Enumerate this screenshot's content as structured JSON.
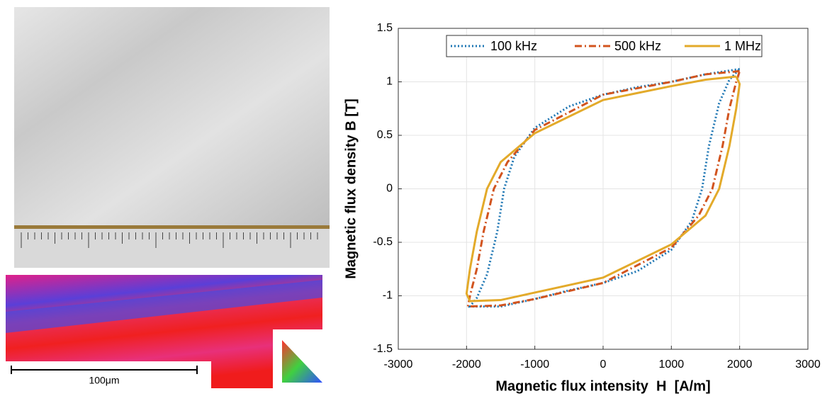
{
  "figure_texts": {
    "scale_bar": "100μm"
  },
  "chart_data": {
    "type": "line",
    "x_label": "Magnetic flux intensity  H  [A/m]",
    "y_label": "Magnetic flux density B [T]",
    "xlim": [
      -3000,
      3000
    ],
    "xticks": [
      -3000,
      -2000,
      -1000,
      0,
      1000,
      2000,
      3000
    ],
    "ylim": [
      -1.5,
      1.5
    ],
    "yticks": [
      -1.5,
      -1,
      -0.5,
      0,
      0.5,
      1,
      1.5
    ],
    "grid": true,
    "legend": "top",
    "series": [
      {
        "name": "100 kHz",
        "color": "#1f77b4",
        "style": "dotted",
        "x": [
          2000,
          1500,
          1000,
          500,
          0,
          -500,
          -1000,
          -1300,
          -1450,
          -1550,
          -1700,
          -1850,
          -1950,
          -1500,
          -1000,
          -500,
          0,
          500,
          1000,
          1300,
          1450,
          1550,
          1700,
          1850,
          2000
        ],
        "values": [
          1.12,
          1.07,
          1.0,
          0.95,
          0.88,
          0.77,
          0.57,
          0.3,
          0,
          -0.4,
          -0.8,
          -1.02,
          -1.1,
          -1.1,
          -1.03,
          -0.95,
          -0.88,
          -0.77,
          -0.57,
          -0.3,
          0,
          0.4,
          0.8,
          1.02,
          1.12
        ]
      },
      {
        "name": "500 kHz",
        "color": "#d2541f",
        "style": "dashdot",
        "x": [
          2000,
          1500,
          1000,
          0,
          -1000,
          -1400,
          -1600,
          -1750,
          -1850,
          -1950,
          -1980,
          -1500,
          -1000,
          0,
          1000,
          1400,
          1600,
          1750,
          1850,
          1950,
          2000
        ],
        "values": [
          1.1,
          1.07,
          1.0,
          0.88,
          0.55,
          0.25,
          0,
          -0.4,
          -0.75,
          -1.0,
          -1.1,
          -1.09,
          -1.03,
          -0.88,
          -0.55,
          -0.25,
          0,
          0.4,
          0.75,
          1.0,
          1.1
        ]
      },
      {
        "name": "1 MHz",
        "color": "#e3aa2a",
        "style": "solid",
        "x": [
          1950,
          1500,
          1000,
          0,
          -1000,
          -1500,
          -1700,
          -1850,
          -1950,
          -2000,
          -1950,
          -1500,
          -1000,
          0,
          1000,
          1500,
          1700,
          1850,
          1950,
          2000,
          1950
        ],
        "values": [
          1.05,
          1.02,
          0.96,
          0.83,
          0.52,
          0.25,
          0,
          -0.4,
          -0.75,
          -0.98,
          -1.05,
          -1.04,
          -0.97,
          -0.83,
          -0.52,
          -0.25,
          0,
          0.4,
          0.75,
          0.98,
          1.05
        ]
      }
    ]
  }
}
